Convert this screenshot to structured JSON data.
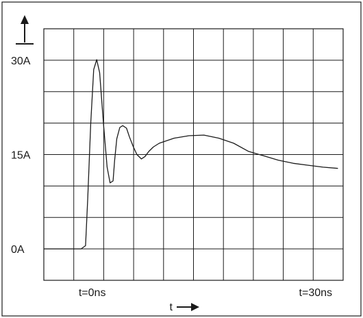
{
  "chart_data": {
    "type": "line",
    "title": "",
    "xlabel": "t",
    "ylabel": "",
    "y_ticks": [
      {
        "value": 0,
        "label": "0A"
      },
      {
        "value": 15,
        "label": "15A"
      },
      {
        "value": 30,
        "label": "30A"
      }
    ],
    "x_ticks": [
      {
        "value": 0,
        "label": "t=0ns"
      },
      {
        "value": 30,
        "label": "t=30ns"
      }
    ],
    "xlim": [
      -6.5,
      33.7
    ],
    "ylim": [
      -5,
      35
    ],
    "grid": true,
    "series": [
      {
        "x": [
          -6.5,
          -1.5,
          -0.9,
          -0.6,
          -0.2,
          0.2,
          0.6,
          1.0,
          1.5,
          2.0,
          2.4,
          2.8,
          3.0,
          3.3,
          3.7,
          4.1,
          4.6,
          5.0,
          5.5,
          6.0,
          6.6,
          7.1,
          7.6,
          8.2,
          9.0,
          11.0,
          13.0,
          15.0,
          17.0,
          19.0,
          21.0,
          23.0,
          25.0,
          27.0,
          29.0,
          31.0,
          33.0
        ],
        "y": [
          0.0,
          0.0,
          0.5,
          8.0,
          20.0,
          28.5,
          30.1,
          28.0,
          20.0,
          13.0,
          10.5,
          10.8,
          14.0,
          17.5,
          19.3,
          19.6,
          19.2,
          17.8,
          16.3,
          15.0,
          14.3,
          14.7,
          15.5,
          16.2,
          16.8,
          17.6,
          18.0,
          18.1,
          17.6,
          16.8,
          15.5,
          14.8,
          14.1,
          13.6,
          13.3,
          13.0,
          12.8
        ]
      }
    ]
  }
}
